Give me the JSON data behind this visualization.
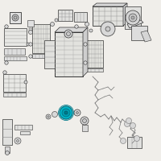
{
  "bg_color": "#f0eeea",
  "line_color": "#555555",
  "line_color_dark": "#333333",
  "line_color_light": "#888888",
  "highlight_color": "#00b8cc",
  "highlight_edge": "#007a8a",
  "fig_size": [
    2.0,
    2.0
  ],
  "dpi": 100
}
